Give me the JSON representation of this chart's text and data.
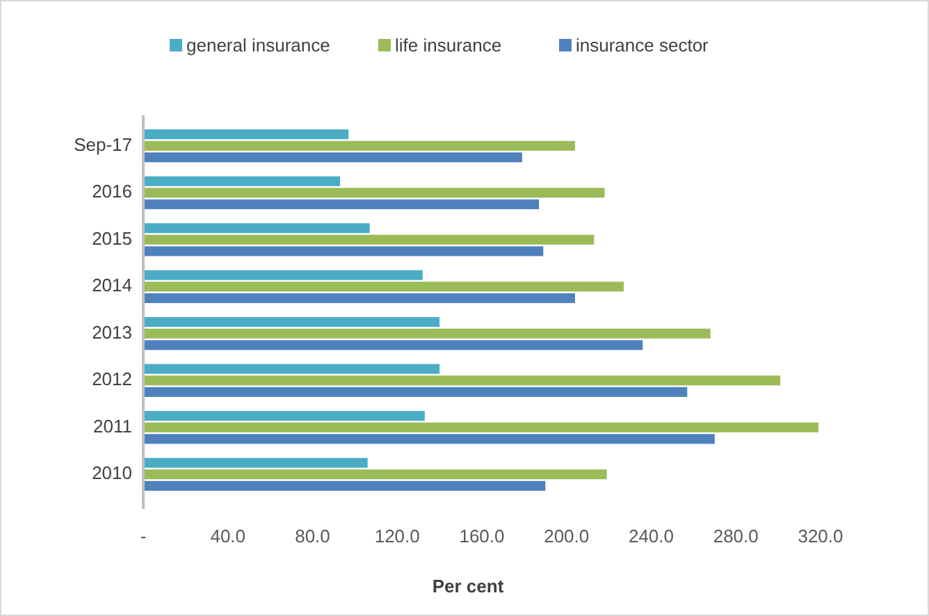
{
  "chart_data": {
    "type": "bar",
    "orientation": "horizontal",
    "xlabel": "Per cent",
    "categories": [
      "Sep-17",
      "2016",
      "2015",
      "2014",
      "2013",
      "2012",
      "2011",
      "2010"
    ],
    "series": [
      {
        "name": "general insurance",
        "color": "#4bacc6",
        "values": [
          97,
          93,
          107,
          132,
          140,
          140,
          133,
          106
        ]
      },
      {
        "name": "life insurance",
        "color": "#9bbb59",
        "values": [
          204,
          218,
          213,
          227,
          268,
          301,
          319,
          219
        ]
      },
      {
        "name": "insurance sector",
        "color": "#4f81bd",
        "values": [
          179,
          187,
          189,
          204,
          236,
          257,
          270,
          190
        ]
      }
    ],
    "xlim": [
      0,
      320
    ],
    "xticks": [
      {
        "value": 0,
        "label": "-"
      },
      {
        "value": 40,
        "label": "40.0"
      },
      {
        "value": 80,
        "label": "80.0"
      },
      {
        "value": 120,
        "label": "120.0"
      },
      {
        "value": 160,
        "label": "160.0"
      },
      {
        "value": 200,
        "label": "200.0"
      },
      {
        "value": 240,
        "label": "240.0"
      },
      {
        "value": 280,
        "label": "280.0"
      },
      {
        "value": 320,
        "label": "320.0"
      }
    ],
    "legend": "top",
    "grid": false
  }
}
